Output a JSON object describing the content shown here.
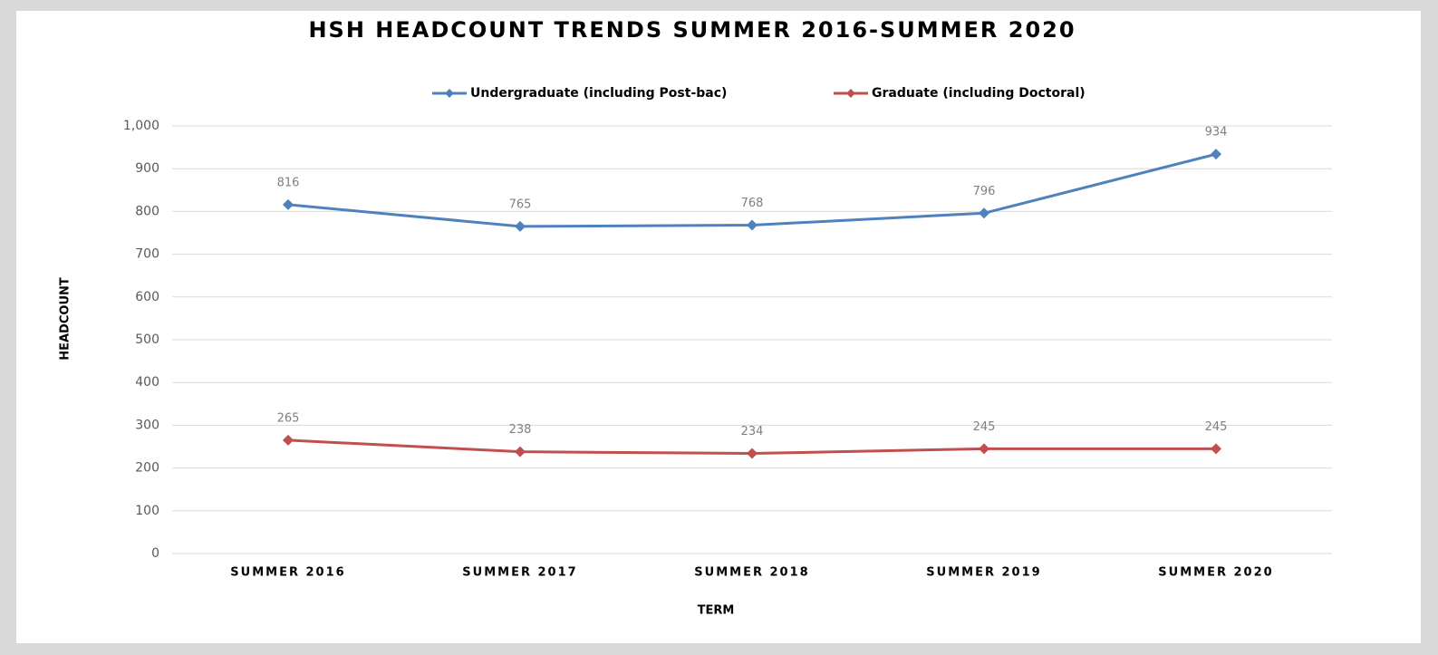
{
  "chart_data": {
    "type": "line",
    "title": "HSH HEADCOUNT TRENDS SUMMER 2016-SUMMER 2020",
    "x_label": "TERM",
    "y_label": "HEADCOUNT",
    "categories": [
      "SUMMER 2016",
      "SUMMER 2017",
      "SUMMER 2018",
      "SUMMER 2019",
      "SUMMER 2020"
    ],
    "series": [
      {
        "name": "Undergraduate (including Post-bac)",
        "color": "#4f81bd",
        "values": [
          816,
          765,
          768,
          796,
          934
        ]
      },
      {
        "name": "Graduate (including Doctoral)",
        "color": "#c0504d",
        "values": [
          265,
          238,
          234,
          245,
          245
        ]
      }
    ],
    "ylim": [
      0,
      1000
    ],
    "yticks": [
      0,
      100,
      200,
      300,
      400,
      500,
      600,
      700,
      800,
      900,
      {
        "value": 1000,
        "label": "1,000"
      }
    ],
    "grid": true,
    "legend": "top"
  }
}
